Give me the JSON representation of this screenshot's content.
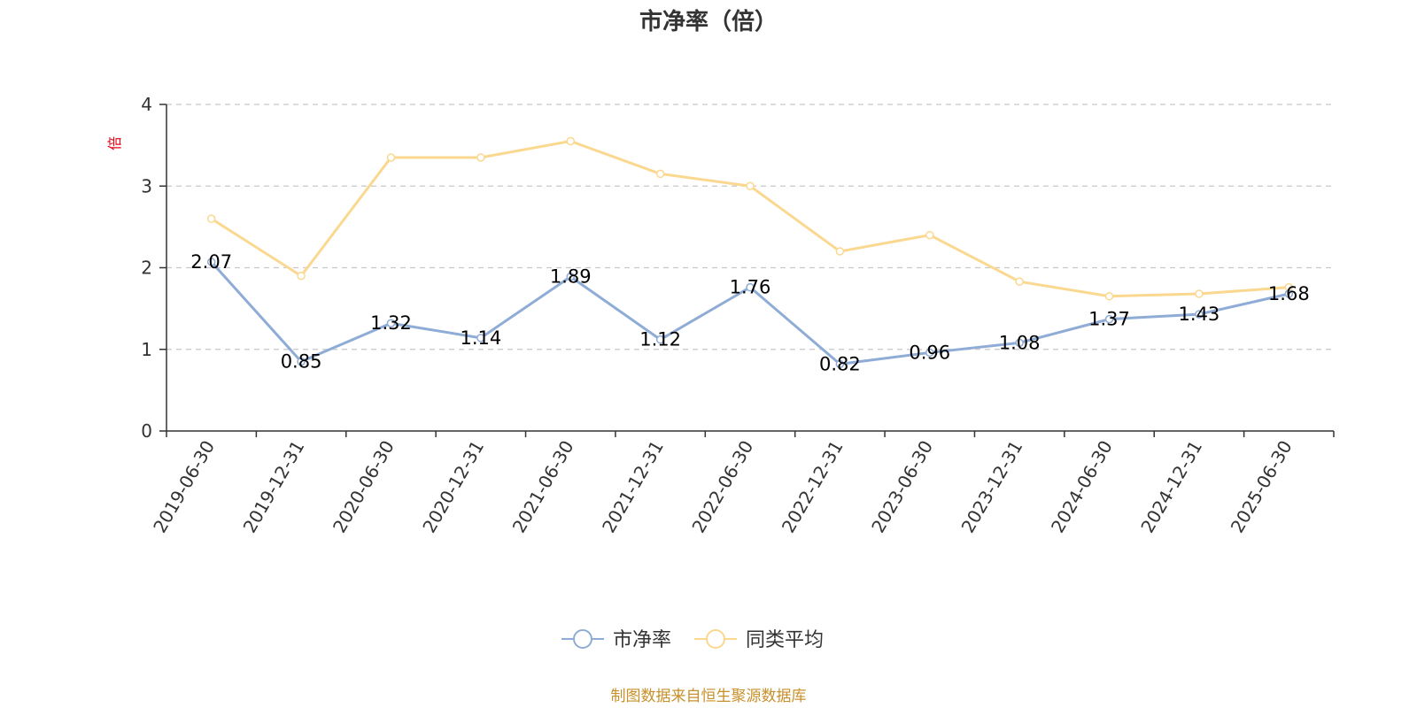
{
  "chart_data": {
    "type": "line",
    "title": "市净率（倍）",
    "ylabel": "倍",
    "ylim": [
      0,
      4
    ],
    "yticks": [
      0,
      1,
      2,
      3,
      4
    ],
    "grid": true,
    "legend_position": "bottom-center",
    "x": [
      "2019-06-30",
      "2019-12-31",
      "2020-06-30",
      "2020-12-31",
      "2021-06-30",
      "2021-12-31",
      "2022-06-30",
      "2022-12-31",
      "2023-06-30",
      "2023-12-31",
      "2024-06-30",
      "2024-12-31",
      "2025-06-30"
    ],
    "series": [
      {
        "name": "市净率",
        "color": "#8eacd6",
        "values": [
          2.07,
          0.85,
          1.32,
          1.14,
          1.89,
          1.12,
          1.76,
          0.82,
          0.96,
          1.08,
          1.37,
          1.43,
          1.68
        ],
        "labels": [
          "2.07",
          "0.85",
          "1.32",
          "1.14",
          "1.89",
          "1.12",
          "1.76",
          "0.82",
          "0.96",
          "1.08",
          "1.37",
          "1.43",
          "1.68"
        ],
        "show_labels": true
      },
      {
        "name": "同类平均",
        "color": "#fad890",
        "values": [
          2.6,
          1.9,
          3.35,
          3.35,
          3.55,
          3.15,
          3.0,
          2.2,
          2.4,
          1.83,
          1.65,
          1.68,
          1.76
        ],
        "show_labels": false
      }
    ]
  },
  "footer": "制图数据来自恒生聚源数据库"
}
